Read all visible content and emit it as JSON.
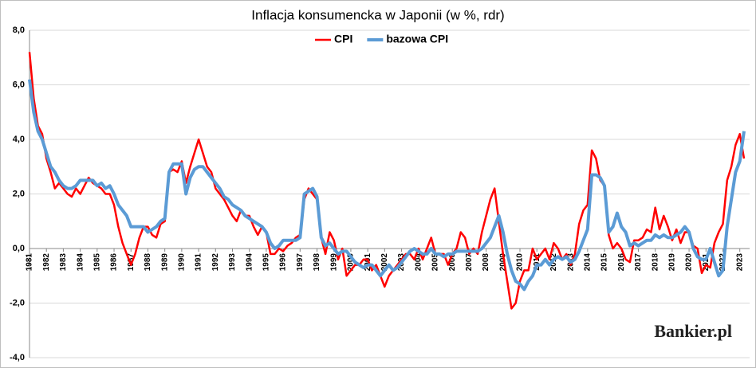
{
  "chart_data": {
    "type": "line",
    "title": "Inflacja konsumencka w Japonii (w %, rdr)",
    "watermark": "Bankier.pl",
    "categories": [
      "1981",
      null,
      null,
      null,
      "1982",
      null,
      null,
      null,
      "1983",
      null,
      null,
      null,
      "1984",
      null,
      null,
      null,
      "1985",
      null,
      null,
      null,
      "1986",
      null,
      null,
      null,
      "1987",
      null,
      null,
      null,
      "1988",
      null,
      null,
      null,
      "1989",
      null,
      null,
      null,
      "1990",
      null,
      null,
      null,
      "1991",
      null,
      null,
      null,
      "1992",
      null,
      null,
      null,
      "1993",
      null,
      null,
      null,
      "1994",
      null,
      null,
      null,
      "1995",
      null,
      null,
      null,
      "1996",
      null,
      null,
      null,
      "1997",
      null,
      null,
      null,
      "1998",
      null,
      null,
      null,
      "1999",
      null,
      null,
      null,
      "2000",
      null,
      null,
      null,
      "2001",
      null,
      null,
      null,
      "2002",
      null,
      null,
      null,
      "2003",
      null,
      null,
      null,
      "2004",
      null,
      null,
      null,
      "2005",
      null,
      null,
      null,
      "2006",
      null,
      null,
      null,
      "2007",
      null,
      null,
      null,
      "2008",
      null,
      null,
      null,
      "2009",
      null,
      null,
      null,
      "2010",
      null,
      null,
      null,
      "2011",
      null,
      null,
      null,
      "2012",
      null,
      null,
      null,
      "2013",
      null,
      null,
      null,
      "2014",
      null,
      null,
      null,
      "2015",
      null,
      null,
      null,
      "2016",
      null,
      null,
      null,
      "2017",
      null,
      null,
      null,
      "2018",
      null,
      null,
      null,
      "2019",
      null,
      null,
      null,
      "2020",
      null,
      null,
      null,
      "2021",
      null,
      null,
      null,
      "2022",
      null,
      null,
      null,
      "2023",
      null
    ],
    "series": [
      {
        "name": "CPI",
        "color": "#ff0000",
        "width": 2.5,
        "values": [
          7.2,
          5.5,
          4.5,
          4.2,
          3.3,
          2.8,
          2.2,
          2.4,
          2.2,
          2.0,
          1.9,
          2.2,
          2.0,
          2.3,
          2.6,
          2.4,
          2.3,
          2.2,
          2.0,
          2.0,
          1.6,
          0.8,
          0.2,
          -0.2,
          -0.6,
          -0.2,
          0.4,
          0.8,
          0.8,
          0.5,
          0.4,
          0.9,
          1.0,
          2.8,
          2.9,
          2.8,
          3.2,
          2.4,
          3.0,
          3.5,
          4.0,
          3.5,
          3.0,
          2.8,
          2.2,
          2.0,
          1.8,
          1.5,
          1.2,
          1.0,
          1.4,
          1.2,
          1.2,
          0.8,
          0.5,
          0.8,
          0.6,
          -0.2,
          -0.2,
          0.0,
          -0.1,
          0.1,
          0.2,
          0.4,
          0.5,
          1.8,
          2.2,
          2.0,
          1.8,
          0.4,
          -0.2,
          0.6,
          0.3,
          -0.4,
          0.0,
          -1.0,
          -0.8,
          -0.6,
          -0.6,
          -0.4,
          -0.4,
          -0.8,
          -0.6,
          -1.0,
          -1.4,
          -1.0,
          -0.8,
          -0.6,
          -0.4,
          -0.2,
          -0.2,
          -0.4,
          0.0,
          -0.4,
          0.0,
          0.4,
          -0.2,
          -0.2,
          -0.2,
          -0.6,
          -0.2,
          0.0,
          0.6,
          0.4,
          -0.2,
          0.0,
          -0.2,
          0.6,
          1.2,
          1.8,
          2.2,
          1.0,
          -0.2,
          -1.2,
          -2.2,
          -2.0,
          -1.2,
          -0.8,
          -0.8,
          0.0,
          -0.4,
          -0.2,
          0.0,
          -0.4,
          0.2,
          0.0,
          -0.4,
          -0.2,
          -0.6,
          -0.2,
          0.9,
          1.4,
          1.6,
          3.6,
          3.3,
          2.5,
          2.3,
          0.5,
          0.0,
          0.2,
          0.0,
          -0.4,
          -0.5,
          0.3,
          0.3,
          0.4,
          0.7,
          0.6,
          1.5,
          0.7,
          1.2,
          0.8,
          0.3,
          0.7,
          0.2,
          0.6,
          0.6,
          0.1,
          0.0,
          -0.9,
          -0.6,
          -0.7,
          0.2,
          0.6,
          0.9,
          2.5,
          3.0,
          3.8,
          4.2,
          3.3
        ]
      },
      {
        "name": "bazowa CPI",
        "color": "#5b9bd5",
        "width": 4,
        "values": [
          6.2,
          5.0,
          4.3,
          4.0,
          3.5,
          3.0,
          2.8,
          2.5,
          2.3,
          2.2,
          2.2,
          2.3,
          2.5,
          2.5,
          2.5,
          2.5,
          2.3,
          2.4,
          2.2,
          2.3,
          2.0,
          1.6,
          1.4,
          1.2,
          0.8,
          0.8,
          0.8,
          0.8,
          0.6,
          0.7,
          0.8,
          1.0,
          1.1,
          2.8,
          3.1,
          3.1,
          3.1,
          2.0,
          2.6,
          2.9,
          3.0,
          3.0,
          2.8,
          2.6,
          2.4,
          2.2,
          1.9,
          1.8,
          1.6,
          1.5,
          1.4,
          1.2,
          1.1,
          1.0,
          0.9,
          0.8,
          0.6,
          0.2,
          0.0,
          0.1,
          0.3,
          0.3,
          0.3,
          0.3,
          0.4,
          2.0,
          2.1,
          2.2,
          1.9,
          0.4,
          0.1,
          0.2,
          0.0,
          -0.2,
          -0.1,
          -0.1,
          -0.3,
          -0.5,
          -0.6,
          -0.7,
          -0.6,
          -0.6,
          -0.8,
          -1.0,
          -0.8,
          -0.6,
          -0.8,
          -0.7,
          -0.5,
          -0.3,
          -0.1,
          0.0,
          -0.1,
          -0.2,
          -0.2,
          0.0,
          -0.2,
          -0.2,
          -0.3,
          -0.2,
          -0.2,
          -0.1,
          -0.1,
          -0.1,
          -0.1,
          -0.1,
          -0.1,
          0.0,
          0.2,
          0.4,
          0.8,
          1.2,
          0.6,
          -0.2,
          -0.8,
          -1.2,
          -1.3,
          -1.5,
          -1.2,
          -1.0,
          -0.6,
          -0.6,
          -0.4,
          -0.6,
          -0.4,
          -0.3,
          -0.4,
          -0.3,
          -0.5,
          -0.4,
          -0.1,
          0.3,
          0.7,
          2.7,
          2.7,
          2.6,
          2.3,
          0.6,
          0.8,
          1.3,
          0.8,
          0.6,
          0.1,
          0.2,
          0.1,
          0.2,
          0.3,
          0.3,
          0.5,
          0.4,
          0.5,
          0.4,
          0.4,
          0.5,
          0.6,
          0.8,
          0.6,
          0.0,
          -0.3,
          -0.4,
          -0.4,
          0.0,
          -0.5,
          -1.0,
          -0.8,
          0.8,
          1.8,
          2.8,
          3.2,
          4.3
        ]
      }
    ],
    "ylim": [
      -4,
      8
    ],
    "yticks": [
      {
        "value": -4,
        "label": "-4,0"
      },
      {
        "value": -2,
        "label": "-2,0"
      },
      {
        "value": 0,
        "label": "0,0"
      },
      {
        "value": 2,
        "label": "2,0"
      },
      {
        "value": 4,
        "label": "4,0"
      },
      {
        "value": 6,
        "label": "6,0"
      },
      {
        "value": 8,
        "label": "8,0"
      }
    ],
    "grid": true
  }
}
